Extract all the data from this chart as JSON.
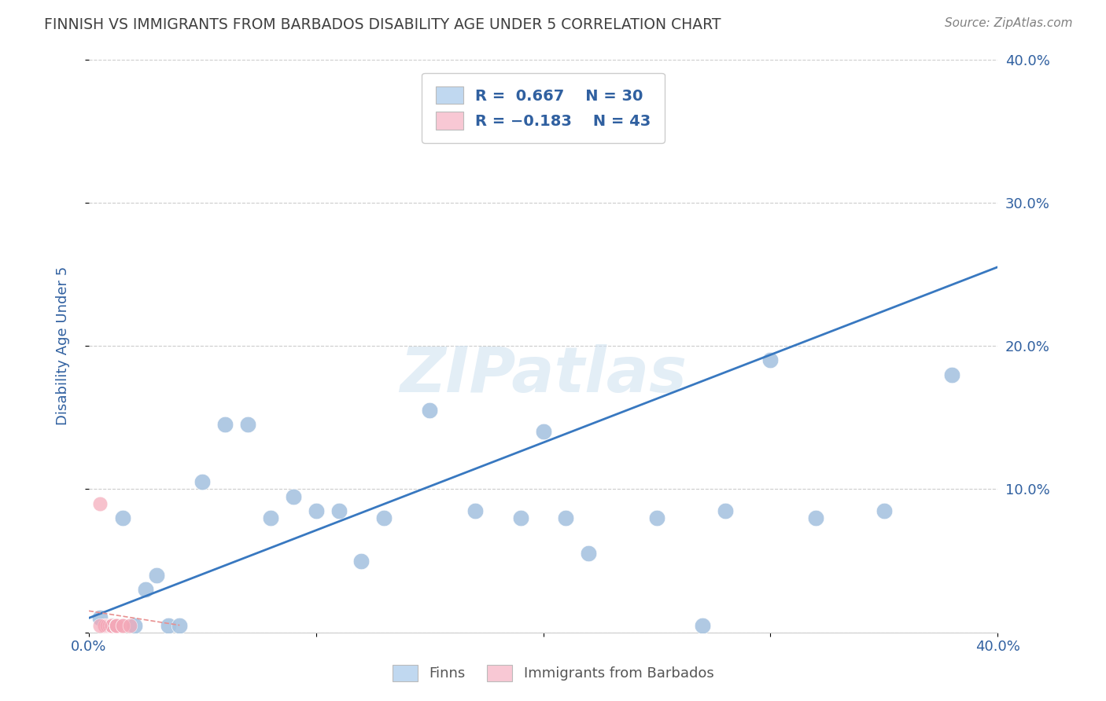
{
  "title": "FINNISH VS IMMIGRANTS FROM BARBADOS DISABILITY AGE UNDER 5 CORRELATION CHART",
  "source": "Source: ZipAtlas.com",
  "ylabel": "Disability Age Under 5",
  "xlim": [
    0.0,
    0.4
  ],
  "ylim": [
    0.0,
    0.4
  ],
  "ytick_values": [
    0.0,
    0.1,
    0.2,
    0.3,
    0.4
  ],
  "ytick_labels_right": [
    "",
    "10.0%",
    "20.0%",
    "30.0%",
    "40.0%"
  ],
  "xtick_values": [
    0.0,
    0.1,
    0.2,
    0.3,
    0.4
  ],
  "xtick_labels": [
    "0.0%",
    "10.0%",
    "20.0%",
    "30.0%",
    "40.0%"
  ],
  "grid_color": "#cccccc",
  "background_color": "#ffffff",
  "watermark_text": "ZIPatlas",
  "finns_R": 0.667,
  "finns_N": 30,
  "barbados_R": -0.183,
  "barbados_N": 43,
  "finns_color": "#a8c4e0",
  "barbados_color": "#f4a8b8",
  "finns_line_color": "#3878c0",
  "barbados_line_color": "#e89090",
  "finns_x": [
    0.005,
    0.01,
    0.015,
    0.02,
    0.025,
    0.03,
    0.035,
    0.04,
    0.05,
    0.06,
    0.07,
    0.08,
    0.09,
    0.1,
    0.11,
    0.12,
    0.13,
    0.15,
    0.17,
    0.19,
    0.2,
    0.21,
    0.22,
    0.25,
    0.27,
    0.28,
    0.3,
    0.32,
    0.35,
    0.38
  ],
  "finns_y": [
    0.01,
    0.005,
    0.08,
    0.005,
    0.03,
    0.04,
    0.005,
    0.005,
    0.105,
    0.145,
    0.145,
    0.08,
    0.095,
    0.085,
    0.085,
    0.05,
    0.08,
    0.155,
    0.085,
    0.08,
    0.14,
    0.08,
    0.055,
    0.08,
    0.005,
    0.085,
    0.19,
    0.08,
    0.085,
    0.18
  ],
  "barbados_x": [
    0.005,
    0.007,
    0.007,
    0.008,
    0.008,
    0.009,
    0.009,
    0.01,
    0.01,
    0.01,
    0.01,
    0.01,
    0.01,
    0.01,
    0.01,
    0.01,
    0.01,
    0.01,
    0.01,
    0.012,
    0.012,
    0.012,
    0.012,
    0.012,
    0.012,
    0.012,
    0.012,
    0.012,
    0.012,
    0.012,
    0.012,
    0.012,
    0.012,
    0.012,
    0.012,
    0.012,
    0.012,
    0.012,
    0.012,
    0.015,
    0.015,
    0.018,
    0.005
  ],
  "barbados_y": [
    0.09,
    0.005,
    0.005,
    0.005,
    0.005,
    0.005,
    0.005,
    0.005,
    0.005,
    0.005,
    0.005,
    0.005,
    0.005,
    0.005,
    0.005,
    0.005,
    0.005,
    0.005,
    0.005,
    0.005,
    0.005,
    0.005,
    0.005,
    0.005,
    0.005,
    0.005,
    0.005,
    0.005,
    0.005,
    0.005,
    0.005,
    0.005,
    0.005,
    0.005,
    0.005,
    0.005,
    0.005,
    0.005,
    0.005,
    0.005,
    0.005,
    0.005,
    0.005
  ],
  "legend_finn_color": "#c0d8f0",
  "legend_barbados_color": "#f8c8d4",
  "legend_text_color": "#3060a0",
  "title_color": "#404040",
  "axis_label_color": "#3060a0",
  "tick_label_color": "#3060a0",
  "source_color": "#808080"
}
